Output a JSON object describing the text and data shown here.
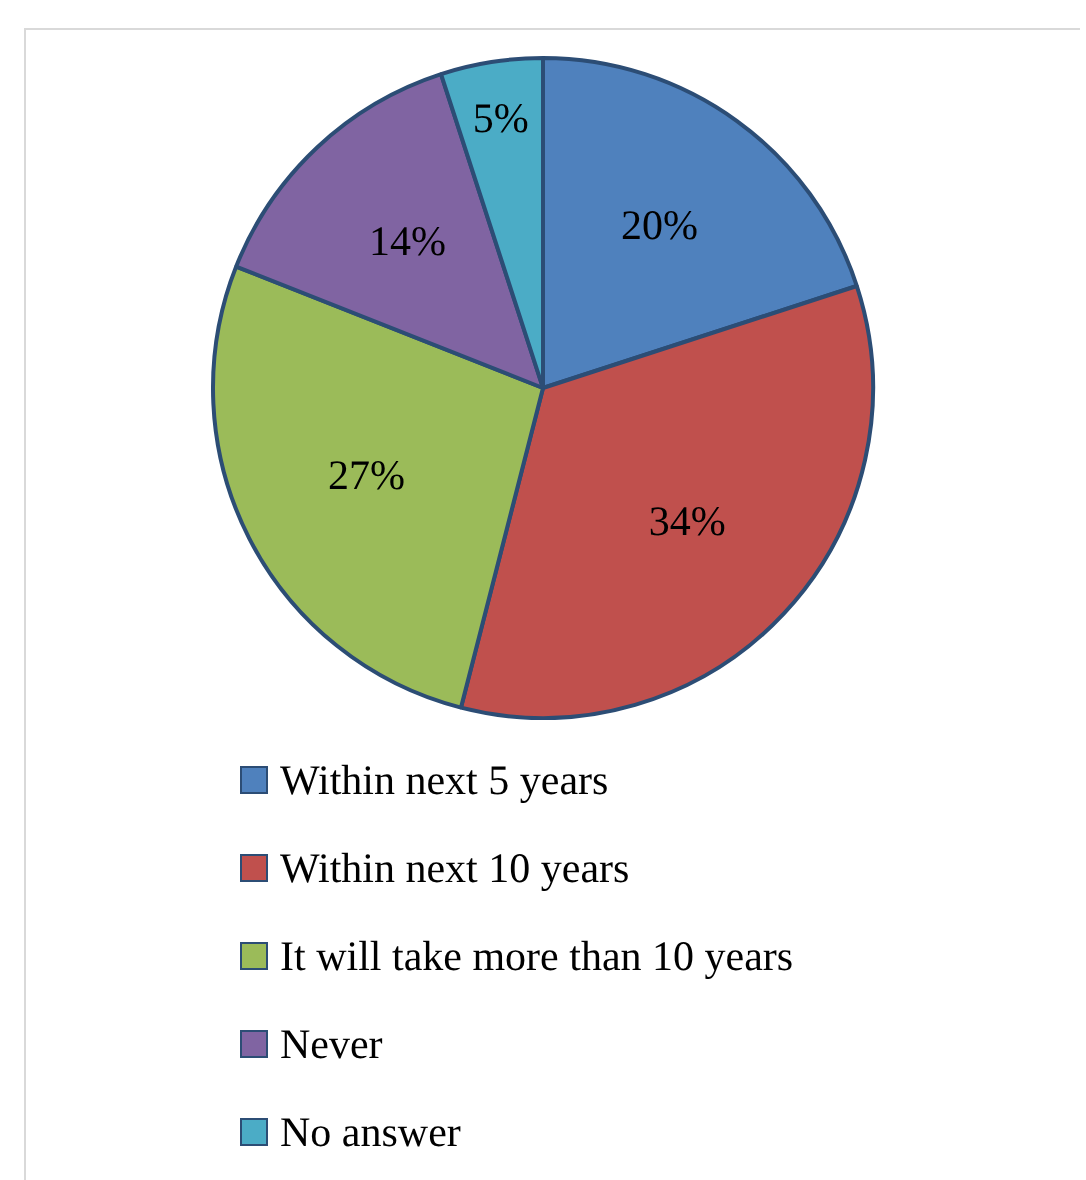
{
  "chart_data": {
    "type": "pie",
    "categories": [
      "Within next 5 years",
      "Within next 10 years",
      "It will take more than 10 years",
      "Never",
      "No answer"
    ],
    "values": [
      20,
      34,
      27,
      14,
      5
    ],
    "colors": [
      "#4f81bd",
      "#c0504d",
      "#9bbb59",
      "#8064a2",
      "#4bacc6"
    ],
    "value_labels": [
      "20%",
      "34%",
      "27%",
      "14%",
      "5%"
    ],
    "legend": "bottom"
  }
}
